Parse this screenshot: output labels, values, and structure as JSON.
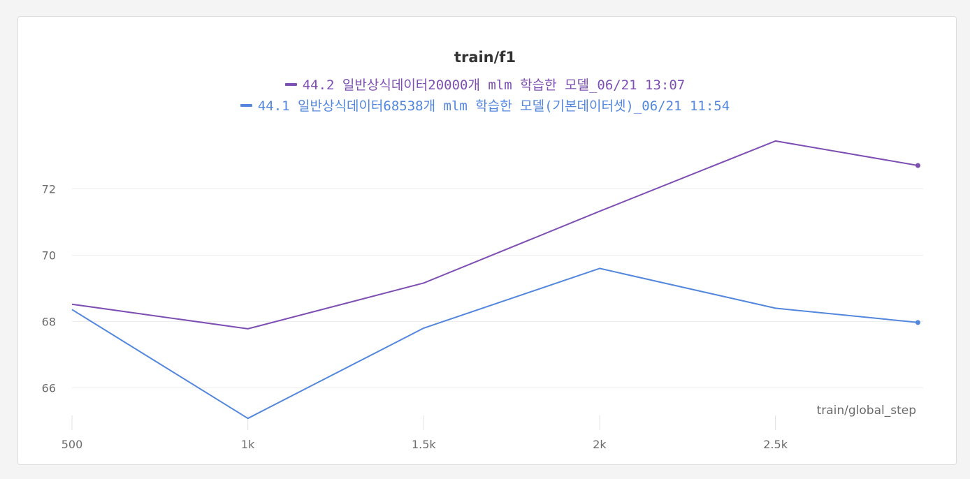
{
  "chart_data": {
    "type": "line",
    "title": "train/f1",
    "xlabel": "train/global_step",
    "ylabel": "",
    "xlim": [
      500,
      2920
    ],
    "ylim": [
      65,
      74.3
    ],
    "grid": true,
    "legend_position": "top-center",
    "x_ticks": [
      {
        "value": 500,
        "label": "500"
      },
      {
        "value": 1000,
        "label": "1k"
      },
      {
        "value": 1500,
        "label": "1.5k"
      },
      {
        "value": 2000,
        "label": "2k"
      },
      {
        "value": 2500,
        "label": "2.5k"
      }
    ],
    "y_ticks": [
      {
        "value": 66,
        "label": "66"
      },
      {
        "value": 68,
        "label": "68"
      },
      {
        "value": 70,
        "label": "70"
      },
      {
        "value": 72,
        "label": "72"
      }
    ],
    "series": [
      {
        "name": "44.2 일반상식데이터20000개 mlm 학습한 모델_06/21 13:07",
        "color": "#7e4fb3",
        "x": [
          500,
          1000,
          1500,
          2000,
          2500,
          2905
        ],
        "values": [
          68.52,
          67.78,
          69.16,
          71.32,
          73.44,
          72.7
        ]
      },
      {
        "name": "44.1 일반상식데이터68538개 mlm 학습한 모델(기본데이터셋)_06/21 11:54",
        "color": "#5387dd",
        "x": [
          500,
          1000,
          1500,
          2000,
          2500,
          2905
        ],
        "values": [
          68.36,
          65.08,
          67.8,
          69.6,
          68.4,
          67.97
        ]
      }
    ]
  }
}
